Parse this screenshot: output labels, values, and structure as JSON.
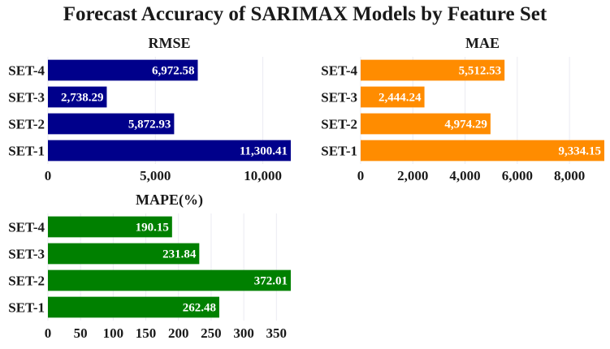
{
  "title": "Forecast Accuracy of SARIMAX Models by Feature Set",
  "chart_data": [
    {
      "type": "bar",
      "orientation": "horizontal",
      "title": "RMSE",
      "categories": [
        "SET-1",
        "SET-2",
        "SET-3",
        "SET-4"
      ],
      "values": [
        11300.41,
        5872.93,
        2738.29,
        6972.58
      ],
      "value_labels": [
        "11,300.41",
        "5,872.93",
        "2,738.29",
        "6,972.58"
      ],
      "xlim": [
        0,
        11300.41
      ],
      "xticks": [
        0,
        5000,
        10000
      ],
      "xtick_labels": [
        "0",
        "5,000",
        "10,000"
      ],
      "color": "#00008b",
      "grid": true
    },
    {
      "type": "bar",
      "orientation": "horizontal",
      "title": "MAE",
      "categories": [
        "SET-1",
        "SET-2",
        "SET-3",
        "SET-4"
      ],
      "values": [
        9334.15,
        4974.29,
        2444.24,
        5512.53
      ],
      "value_labels": [
        "9,334.15",
        "4,974.29",
        "2,444.24",
        "5,512.53"
      ],
      "xlim": [
        0,
        9334.15
      ],
      "xticks": [
        0,
        2000,
        4000,
        6000,
        8000
      ],
      "xtick_labels": [
        "0",
        "2,000",
        "4,000",
        "6,000",
        "8,000"
      ],
      "color": "#ff8c00",
      "grid": true
    },
    {
      "type": "bar",
      "orientation": "horizontal",
      "title": "MAPE(%)",
      "categories": [
        "SET-1",
        "SET-2",
        "SET-3",
        "SET-4"
      ],
      "values": [
        262.48,
        372.01,
        231.84,
        190.15
      ],
      "value_labels": [
        "262.48",
        "372.01",
        "231.84",
        "190.15"
      ],
      "xlim": [
        0,
        372.01
      ],
      "xticks": [
        0,
        50,
        100,
        150,
        200,
        250,
        300,
        350
      ],
      "xtick_labels": [
        "0",
        "50",
        "100",
        "150",
        "200",
        "250",
        "300",
        "350"
      ],
      "color": "#008000",
      "grid": true
    }
  ]
}
